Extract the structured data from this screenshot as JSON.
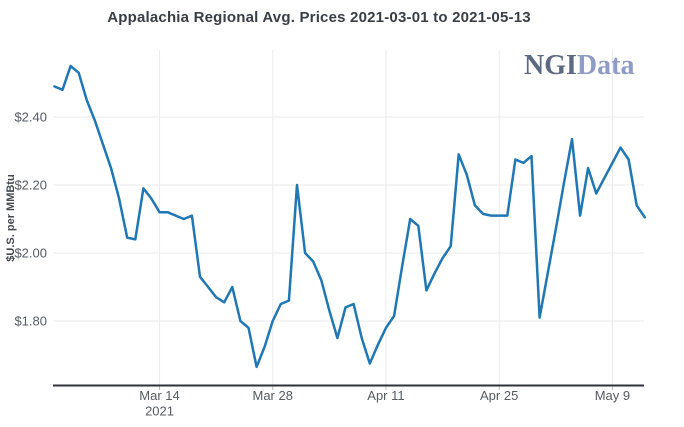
{
  "title": "Appalachia Regional Avg. Prices 2021-03-01 to 2021-05-13",
  "logo": {
    "ngi": "NGI",
    "data": "Data",
    "ngi_color": "#5c6983",
    "data_color": "#8f9cc6"
  },
  "chart_data": {
    "type": "line",
    "title": "Appalachia Regional Avg. Prices 2021-03-01 to 2021-05-13",
    "xlabel": "",
    "ylabel": "$U.S. per MMBtu",
    "series_name": "Appalachia Regional Avg. Price",
    "series_color": "#1f77b4",
    "grid": true,
    "legend_position": "none",
    "x_start": "2021-03-01",
    "x_end": "2021-05-13",
    "y_range": [
      1.61,
      2.58
    ],
    "y_ticks": [
      {
        "label": "$1.80",
        "value": 1.8
      },
      {
        "label": "$2.00",
        "value": 2.0
      },
      {
        "label": "$2.20",
        "value": 2.2
      },
      {
        "label": "$2.40",
        "value": 2.4
      }
    ],
    "x_ticks": [
      {
        "label": "Mar 14",
        "sub": "2021",
        "date": "2021-03-14"
      },
      {
        "label": "Mar 28",
        "sub": "",
        "date": "2021-03-28"
      },
      {
        "label": "Apr 11",
        "sub": "",
        "date": "2021-04-11"
      },
      {
        "label": "Apr 25",
        "sub": "",
        "date": "2021-04-25"
      },
      {
        "label": "May 9",
        "sub": "",
        "date": "2021-05-09"
      }
    ],
    "dates": [
      "2021-03-01",
      "2021-03-02",
      "2021-03-03",
      "2021-03-04",
      "2021-03-05",
      "2021-03-06",
      "2021-03-07",
      "2021-03-08",
      "2021-03-09",
      "2021-03-10",
      "2021-03-11",
      "2021-03-12",
      "2021-03-13",
      "2021-03-14",
      "2021-03-15",
      "2021-03-16",
      "2021-03-17",
      "2021-03-18",
      "2021-03-19",
      "2021-03-20",
      "2021-03-21",
      "2021-03-22",
      "2021-03-23",
      "2021-03-24",
      "2021-03-25",
      "2021-03-26",
      "2021-03-27",
      "2021-03-28",
      "2021-03-29",
      "2021-03-30",
      "2021-03-31",
      "2021-04-01",
      "2021-04-02",
      "2021-04-03",
      "2021-04-04",
      "2021-04-05",
      "2021-04-06",
      "2021-04-07",
      "2021-04-08",
      "2021-04-09",
      "2021-04-10",
      "2021-04-11",
      "2021-04-12",
      "2021-04-13",
      "2021-04-14",
      "2021-04-15",
      "2021-04-16",
      "2021-04-17",
      "2021-04-18",
      "2021-04-19",
      "2021-04-20",
      "2021-04-21",
      "2021-04-22",
      "2021-04-23",
      "2021-04-24",
      "2021-04-25",
      "2021-04-26",
      "2021-04-27",
      "2021-04-28",
      "2021-04-29",
      "2021-04-30",
      "2021-05-01",
      "2021-05-02",
      "2021-05-03",
      "2021-05-04",
      "2021-05-05",
      "2021-05-06",
      "2021-05-07",
      "2021-05-08",
      "2021-05-09",
      "2021-05-10",
      "2021-05-11",
      "2021-05-12",
      "2021-05-13"
    ],
    "values": [
      2.49,
      2.48,
      2.55,
      2.53,
      2.45,
      2.39,
      2.32,
      2.25,
      2.16,
      2.045,
      2.04,
      2.19,
      2.16,
      2.12,
      2.12,
      2.11,
      2.1,
      2.11,
      1.93,
      1.9,
      1.87,
      1.855,
      1.9,
      1.8,
      1.78,
      1.665,
      1.725,
      1.8,
      1.85,
      1.86,
      2.2,
      2.0,
      1.975,
      1.92,
      1.83,
      1.75,
      1.84,
      1.85,
      1.75,
      1.675,
      1.73,
      1.78,
      1.815,
      1.96,
      2.1,
      2.08,
      1.89,
      1.94,
      1.985,
      2.02,
      2.29,
      2.23,
      2.14,
      2.115,
      2.11,
      2.11,
      2.11,
      2.275,
      2.265,
      2.285,
      1.81,
      1.94,
      2.07,
      2.205,
      2.335,
      2.11,
      2.25,
      2.175,
      2.22,
      2.265,
      2.31,
      2.275,
      2.14,
      2.105
    ]
  }
}
